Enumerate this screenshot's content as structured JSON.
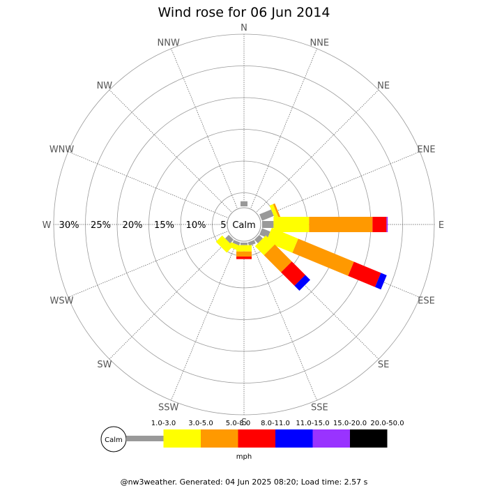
{
  "chart_data": {
    "type": "wind-rose",
    "title": "Wind rose for 06 Jun 2014",
    "directions": [
      "N",
      "NNE",
      "NE",
      "ENE",
      "E",
      "ESE",
      "SE",
      "SSE",
      "S",
      "SSW",
      "SW",
      "WSW",
      "W",
      "WNW",
      "NW",
      "NNW"
    ],
    "radial_labels": [
      "5%",
      "10%",
      "15%",
      "20%",
      "25%",
      "30%"
    ],
    "radial_ticks": [
      5,
      10,
      15,
      20,
      25,
      30
    ],
    "r_max": 30,
    "grid": true,
    "calm_label": "Calm",
    "unit": "mph",
    "speed_bins": [
      {
        "label": "1.0-3.0",
        "color": "#999999"
      },
      {
        "label": "3.0-5.0",
        "color": "#ffff00"
      },
      {
        "label": "5.0-8.0",
        "color": "#ff9900"
      },
      {
        "label": "8.0-11.0",
        "color": "#ff0000"
      },
      {
        "label": "11.0-15.0",
        "color": "#0000ff"
      },
      {
        "label": "15.0-20.0",
        "color": "#9933ff"
      },
      {
        "label": "20.0-50.0",
        "color": "#000000"
      }
    ],
    "frequencies": {
      "N": [
        0.8,
        0,
        0,
        0,
        0,
        0,
        0
      ],
      "NNE": [
        0,
        0,
        0,
        0,
        0,
        0,
        0
      ],
      "NE": [
        0,
        0,
        0,
        0,
        0,
        0,
        0
      ],
      "ENE": [
        2.0,
        0.6,
        0.3,
        0,
        0,
        0,
        0
      ],
      "E": [
        1.8,
        5.6,
        10.0,
        2.2,
        0,
        0.2,
        0
      ],
      "ESE": [
        1.4,
        4.5,
        9.5,
        4.6,
        1.0,
        0,
        0
      ],
      "SE": [
        0.8,
        2.0,
        3.8,
        3.0,
        1.1,
        0,
        0
      ],
      "SSE": [
        0.6,
        0,
        0,
        0,
        0,
        0,
        0
      ],
      "S": [
        0.4,
        1.0,
        0.8,
        0.4,
        0,
        0,
        0
      ],
      "SSW": [
        0.5,
        0.8,
        0,
        0,
        0,
        0,
        0
      ],
      "SW": [
        0.8,
        1.4,
        0,
        0,
        0,
        0,
        0
      ],
      "WSW": [
        0,
        0,
        0,
        0,
        0,
        0,
        0
      ],
      "W": [
        0,
        0,
        0,
        0,
        0,
        0,
        0
      ],
      "WNW": [
        0,
        0,
        0,
        0,
        0,
        0,
        0
      ],
      "NW": [
        0,
        0,
        0,
        0,
        0,
        0,
        0
      ],
      "NNW": [
        0,
        0,
        0,
        0,
        0,
        0,
        0
      ]
    }
  },
  "footer": "@nw3weather. Generated: 04 Jun 2025 08:20; Load time: 2.57 s"
}
